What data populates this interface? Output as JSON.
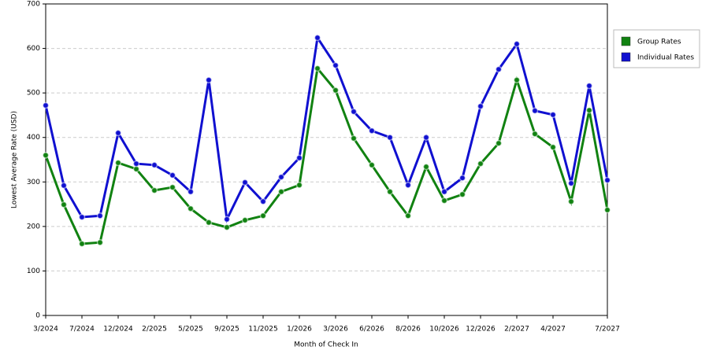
{
  "chart_data": {
    "type": "line",
    "x_label": "Month of Check In",
    "y_label": "Lowest Average Rate (USD)",
    "categories": [
      "3/2024",
      null,
      "7/2024",
      null,
      "12/2024",
      null,
      "2/2025",
      null,
      "5/2025",
      null,
      "9/2025",
      null,
      "11/2025",
      null,
      "1/2026",
      null,
      "3/2026",
      null,
      "6/2026",
      null,
      "8/2026",
      null,
      "10/2026",
      null,
      "12/2026",
      null,
      "2/2027",
      null,
      "4/2027",
      null,
      null,
      "7/2027"
    ],
    "series": [
      {
        "name": "Group Rates",
        "color": "#118211",
        "values": [
          360,
          249,
          161,
          164,
          343,
          329,
          281,
          288,
          240,
          209,
          198,
          214,
          224,
          278,
          293,
          555,
          506,
          398,
          338,
          278,
          224,
          334,
          258,
          272,
          341,
          387,
          529,
          408,
          378,
          256,
          461,
          237
        ]
      },
      {
        "name": "Individual Rates",
        "color": "#1010d0",
        "values": [
          472,
          292,
          221,
          224,
          410,
          341,
          338,
          315,
          278,
          529,
          216,
          299,
          256,
          311,
          354,
          624,
          562,
          458,
          415,
          400,
          293,
          400,
          278,
          309,
          470,
          553,
          610,
          460,
          451,
          297,
          516,
          304
        ]
      }
    ],
    "ylim": [
      0,
      700
    ],
    "yticks": [
      0,
      100,
      200,
      300,
      400,
      500,
      600,
      700
    ],
    "grid": true,
    "legend": "right"
  }
}
